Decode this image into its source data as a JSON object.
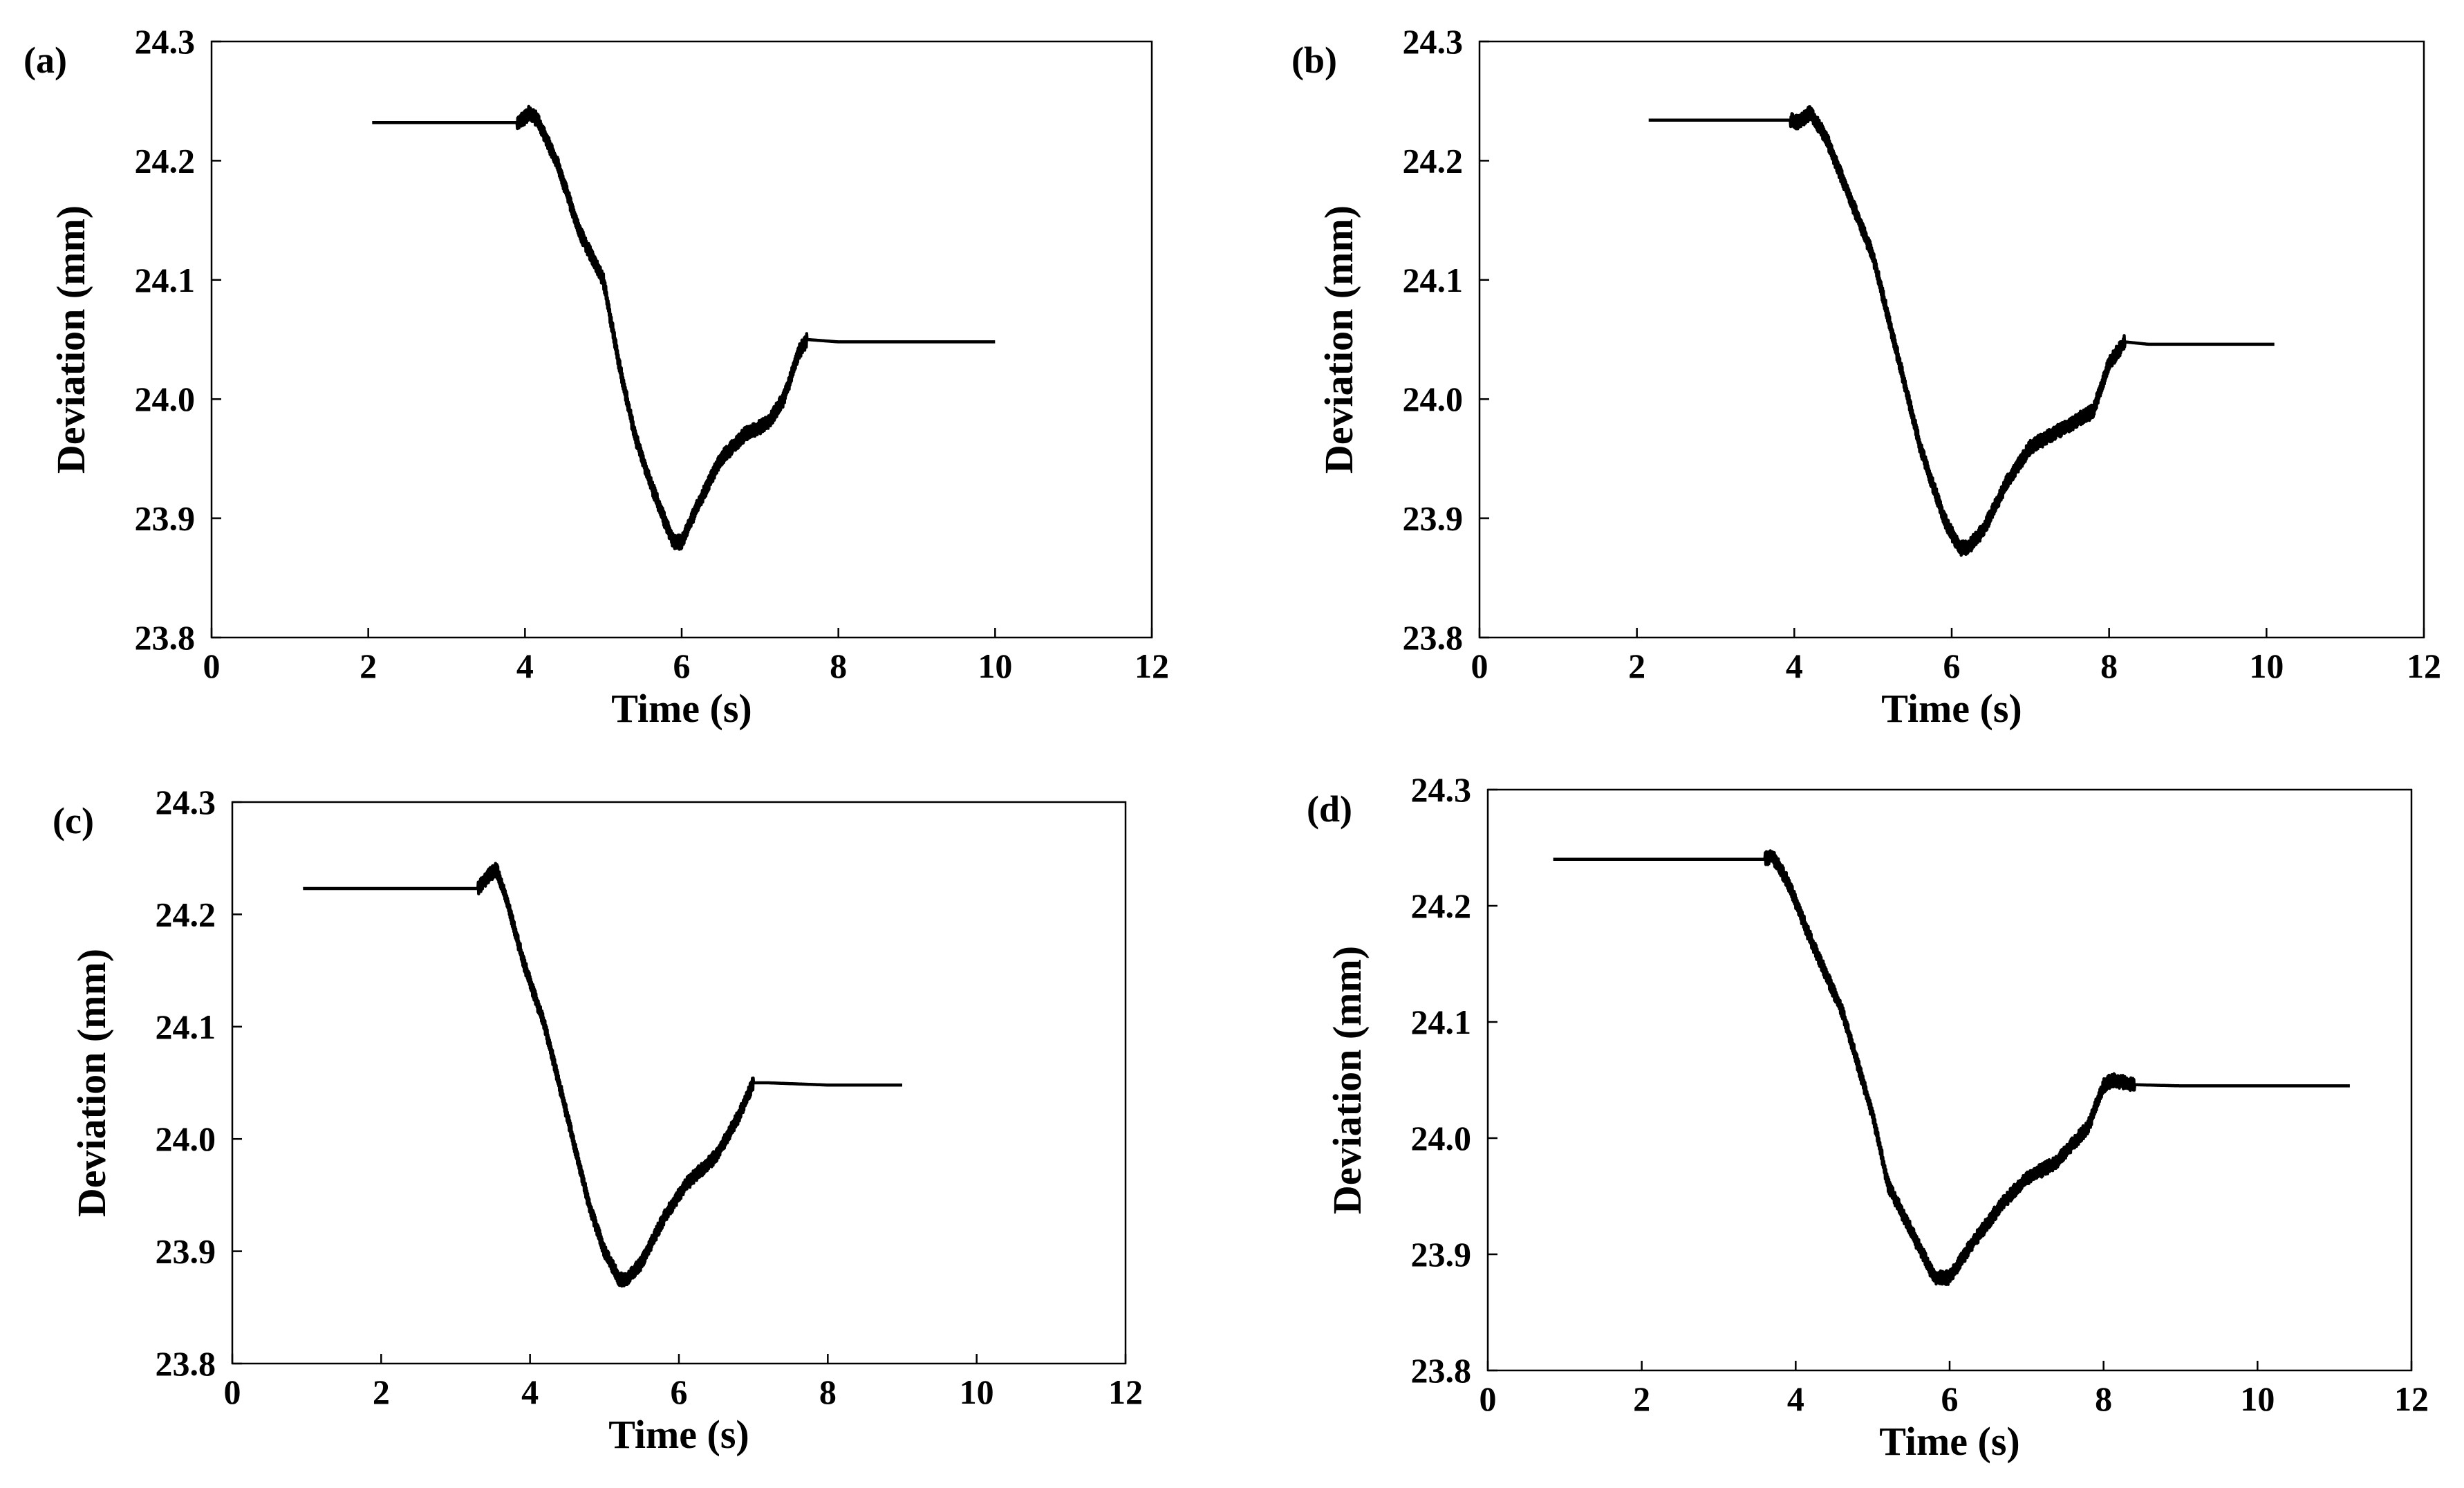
{
  "chart_data": [
    {
      "type": "line",
      "panel_label": "(a)",
      "xlabel": "Time (s)",
      "ylabel": "Deviation (mm)",
      "xlim": [
        0,
        12
      ],
      "ylim": [
        23.8,
        24.3
      ],
      "xticks": [
        "0",
        "2",
        "4",
        "6",
        "8",
        "10",
        "12"
      ],
      "yticks": [
        "23.8",
        "23.9",
        "24.0",
        "24.1",
        "24.2",
        "24.3"
      ],
      "grid": false,
      "series": [
        {
          "name": "deviation",
          "x": [
            2.05,
            3.9,
            4.0,
            4.05,
            4.15,
            4.4,
            4.7,
            5.0,
            5.2,
            5.4,
            5.6,
            5.8,
            5.9,
            6.0,
            6.2,
            6.5,
            6.8,
            7.1,
            7.3,
            7.5,
            7.6,
            8.0,
            9.0,
            10.0
          ],
          "y": [
            24.232,
            24.232,
            24.236,
            24.24,
            24.235,
            24.2,
            24.14,
            24.1,
            24.03,
            23.97,
            23.93,
            23.895,
            23.88,
            23.88,
            23.91,
            23.95,
            23.97,
            23.98,
            24.0,
            24.04,
            24.05,
            24.048,
            24.048,
            24.048
          ]
        }
      ]
    },
    {
      "type": "line",
      "panel_label": "(b)",
      "xlabel": "Time (s)",
      "ylabel": "Deviation (mm)",
      "xlim": [
        0,
        12
      ],
      "ylim": [
        23.8,
        24.3
      ],
      "xticks": [
        "0",
        "2",
        "4",
        "6",
        "8",
        "10",
        "12"
      ],
      "yticks": [
        "23.8",
        "23.9",
        "24.0",
        "24.1",
        "24.2",
        "24.3"
      ],
      "grid": false,
      "series": [
        {
          "name": "deviation",
          "x": [
            2.15,
            3.95,
            4.05,
            4.2,
            4.4,
            4.7,
            5.0,
            5.3,
            5.6,
            5.9,
            6.1,
            6.2,
            6.4,
            6.7,
            7.0,
            7.4,
            7.8,
            8.0,
            8.2,
            8.5,
            9.5,
            10.1
          ],
          "y": [
            24.234,
            24.234,
            24.232,
            24.24,
            24.22,
            24.17,
            24.12,
            24.04,
            23.96,
            23.9,
            23.875,
            23.875,
            23.89,
            23.93,
            23.96,
            23.975,
            23.99,
            24.03,
            24.048,
            24.046,
            24.046,
            24.046
          ]
        }
      ]
    },
    {
      "type": "line",
      "panel_label": "(c)",
      "xlabel": "Time (s)",
      "ylabel": "Deviation (mm)",
      "xlim": [
        0,
        12
      ],
      "ylim": [
        23.8,
        24.3
      ],
      "xticks": [
        "0",
        "2",
        "4",
        "6",
        "8",
        "10",
        "12"
      ],
      "yticks": [
        "23.8",
        "23.9",
        "24.0",
        "24.1",
        "24.2",
        "24.3"
      ],
      "grid": false,
      "series": [
        {
          "name": "deviation",
          "x": [
            0.95,
            3.3,
            3.45,
            3.55,
            3.7,
            3.9,
            4.2,
            4.5,
            4.8,
            5.0,
            5.2,
            5.3,
            5.5,
            5.8,
            6.1,
            6.5,
            6.8,
            7.0,
            7.2,
            8.0,
            9.0
          ],
          "y": [
            24.223,
            24.223,
            24.235,
            24.24,
            24.21,
            24.16,
            24.1,
            24.02,
            23.94,
            23.9,
            23.875,
            23.875,
            23.89,
            23.93,
            23.96,
            23.985,
            24.02,
            24.05,
            24.05,
            24.048,
            24.048
          ]
        }
      ]
    },
    {
      "type": "line",
      "panel_label": "(d)",
      "xlabel": "Time (s)",
      "ylabel": "Deviation (mm)",
      "xlim": [
        0,
        12
      ],
      "ylim": [
        23.8,
        24.3
      ],
      "xticks": [
        "0",
        "2",
        "4",
        "6",
        "8",
        "10",
        "12"
      ],
      "yticks": [
        "23.8",
        "23.9",
        "24.0",
        "24.1",
        "24.2",
        "24.3"
      ],
      "grid": false,
      "series": [
        {
          "name": "deviation",
          "x": [
            0.85,
            3.6,
            3.7,
            3.9,
            4.2,
            4.6,
            5.0,
            5.2,
            5.5,
            5.8,
            6.0,
            6.3,
            6.7,
            7.0,
            7.4,
            7.8,
            8.0,
            8.1,
            8.4,
            9.0,
            10.0,
            11.2
          ],
          "y": [
            24.24,
            24.24,
            24.243,
            24.22,
            24.17,
            24.11,
            24.02,
            23.96,
            23.92,
            23.88,
            23.88,
            23.91,
            23.945,
            23.965,
            23.98,
            24.01,
            24.045,
            24.05,
            24.046,
            24.045,
            24.045,
            24.045
          ]
        }
      ]
    }
  ]
}
